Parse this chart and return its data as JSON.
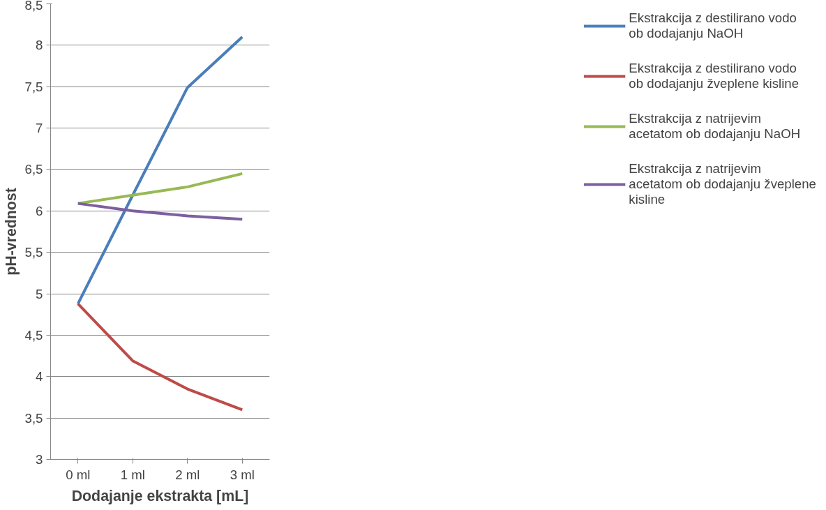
{
  "chart_data": {
    "type": "line",
    "xlabel": "Dodajanje ekstrakta [mL]",
    "ylabel": "pH-vrednost",
    "categories": [
      "0 ml",
      "1 ml",
      "2 ml",
      "3 ml"
    ],
    "series": [
      {
        "name": "Ekstrakcija z destilirano vodo ob dodajanju NaOH",
        "color": "#4a7ebb",
        "values": [
          4.88,
          6.19,
          7.49,
          8.1
        ]
      },
      {
        "name": "Ekstrakcija z destilirano vodo ob dodajanju žveplene kisline",
        "color": "#be4b48",
        "values": [
          4.88,
          4.19,
          3.85,
          3.6
        ]
      },
      {
        "name": "Ekstrakcija z natrijevim acetatom ob dodajanju NaOH",
        "color": "#98b954",
        "values": [
          6.09,
          6.19,
          6.29,
          6.45
        ]
      },
      {
        "name": "Ekstrakcija z natrijevim acetatom ob dodajanju žveplene kisline",
        "color": "#7d60a0",
        "values": [
          6.09,
          6.0,
          5.94,
          5.9
        ]
      }
    ],
    "ylim": [
      3,
      8.5
    ],
    "yticks": [
      {
        "value": 3,
        "label": "3"
      },
      {
        "value": 3.5,
        "label": "3,5"
      },
      {
        "value": 4,
        "label": "4"
      },
      {
        "value": 4.5,
        "label": "4,5"
      },
      {
        "value": 5,
        "label": "5"
      },
      {
        "value": 5.5,
        "label": "5,5"
      },
      {
        "value": 6,
        "label": "6"
      },
      {
        "value": 6.5,
        "label": "6,5"
      },
      {
        "value": 7,
        "label": "7"
      },
      {
        "value": 7.5,
        "label": "7,5"
      },
      {
        "value": 8,
        "label": "8"
      },
      {
        "value": 8.5,
        "label": "8,5"
      }
    ],
    "grid": "y",
    "legend": "right",
    "marker": "none",
    "line_style": "solid"
  }
}
